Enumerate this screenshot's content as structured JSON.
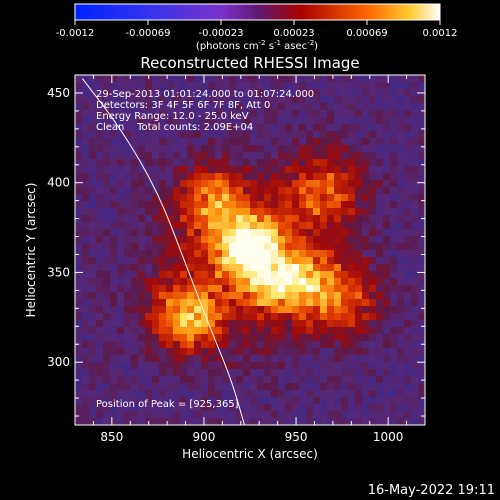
{
  "chart_data": {
    "type": "heatmap",
    "title": "Reconstructed RHESSI Image",
    "xlabel": "Heliocentric X (arcsec)",
    "ylabel": "Heliocentric Y (arcsec)",
    "xlim": [
      830,
      1020
    ],
    "ylim": [
      265,
      460
    ],
    "x_ticks": [
      850,
      900,
      950,
      1000
    ],
    "y_ticks": [
      300,
      350,
      400,
      450
    ],
    "colorbar": {
      "range": [
        -0.0012,
        0.0012
      ],
      "ticks": [
        "-0.0012",
        "-0.00069",
        "-0.00023",
        "0.00023",
        "0.00069",
        "0.0012"
      ],
      "unit_label": "(photons cm",
      "unit_exp1": "-2",
      "unit_mid": " s",
      "unit_exp2": "-1",
      "unit_mid2": " asec",
      "unit_exp3": "-2",
      "unit_end": ")"
    },
    "annotations": [
      "29-Sep-2013 01:01:24.000 to 01:07:24.000",
      "Detectors: 3F 4F 5F 6F 7F 8F, Att 0",
      "Energy Range: 12.0 - 25.0 keV",
      "Clean    Total counts: 2.09E+04"
    ],
    "peak_label": "Position of Peak = [925,365]",
    "peak": {
      "x": 925,
      "y": 365
    },
    "limb_curve": [
      [
        834,
        458
      ],
      [
        855,
        430
      ],
      [
        875,
        395
      ],
      [
        890,
        355
      ],
      [
        903,
        320
      ],
      [
        915,
        290
      ],
      [
        922,
        265
      ]
    ],
    "grid": false
  },
  "footer": {
    "date": "16-May-2022 19:11"
  }
}
